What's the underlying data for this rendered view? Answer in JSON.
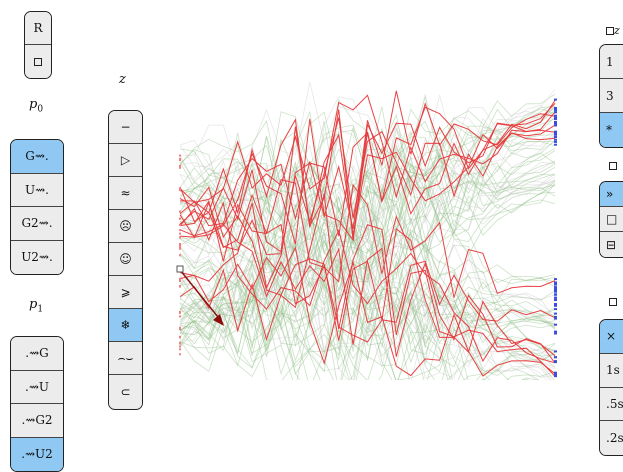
{
  "top_panel": {
    "items": [
      {
        "label": "R"
      },
      {
        "icon": "square-icon"
      }
    ]
  },
  "labels": {
    "p0": "p",
    "p0_sub": "0",
    "p1": "p",
    "p1_sub": "1",
    "z": "z"
  },
  "p0_panel": {
    "items": [
      {
        "label": "G⇝.",
        "selected": true
      },
      {
        "label": "U⇝."
      },
      {
        "label": "G2⇝."
      },
      {
        "label": "U2⇝."
      }
    ]
  },
  "p1_panel": {
    "items": [
      {
        "label": ".⇝G"
      },
      {
        "label": ".⇝U"
      },
      {
        "label": ".⇝G2"
      },
      {
        "label": ".⇝U2",
        "selected": true
      }
    ]
  },
  "z_panel": {
    "items": [
      {
        "glyph": "−",
        "icon": "minus-icon"
      },
      {
        "glyph": "▷",
        "icon": "triangle-right-icon"
      },
      {
        "glyph": "≈",
        "icon": "approx-icon"
      },
      {
        "glyph": "☹",
        "icon": "frown-face-icon"
      },
      {
        "glyph": "☺",
        "icon": "smile-face-icon"
      },
      {
        "glyph": "⩾",
        "icon": "greater-equal-icon"
      },
      {
        "glyph": "❄",
        "icon": "snowflake-icon",
        "selected": true
      },
      {
        "glyph": "⌢⌣",
        "icon": "arc-icon"
      },
      {
        "glyph": "⊂",
        "icon": "subset-icon"
      }
    ]
  },
  "right": {
    "top_label": "z",
    "panel1": [
      {
        "label": "1"
      },
      {
        "label": "3"
      },
      {
        "label": "*",
        "selected": true
      }
    ],
    "panel2": [
      {
        "glyph": "»",
        "icon": "double-chevron-icon",
        "selected": true
      },
      {
        "glyph": "□",
        "icon": "square-icon"
      },
      {
        "glyph": "⊟",
        "icon": "box-minus-icon"
      }
    ],
    "panel3": [
      {
        "label": "×",
        "selected": true
      },
      {
        "label": "1s"
      },
      {
        "label": ".5s"
      },
      {
        "label": ".2s"
      }
    ]
  },
  "colors": {
    "selected": "#8fc8f3",
    "red": "#e8373b",
    "green": "#5a9a4a",
    "blue": "#3a4fe0",
    "arrow": "#8b0e0e"
  }
}
